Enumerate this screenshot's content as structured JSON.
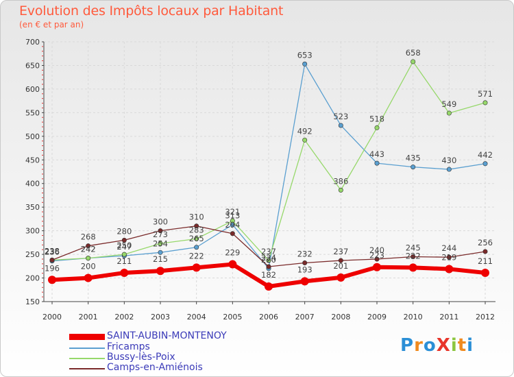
{
  "title": "Evolution des Impôts locaux par Habitant",
  "subtitle": "(en € et par an)",
  "logo": {
    "text": "ProXiti",
    "colors": [
      "#2b8fd6",
      "#f08a1e",
      "#2b8fd6",
      "#e8352a",
      "#8cc63f",
      "#f08a1e",
      "#2b8fd6"
    ]
  },
  "chart_data": {
    "type": "line",
    "title": "Evolution des Impôts locaux par Habitant",
    "subtitle": "(en € et par an)",
    "xlabel": "",
    "ylabel": "",
    "ylim": [
      150,
      700
    ],
    "yticks": [
      150,
      200,
      250,
      300,
      350,
      400,
      450,
      500,
      550,
      600,
      650,
      700
    ],
    "grid": true,
    "legend_position": "bottom-left",
    "categories": [
      "2000",
      "2001",
      "2002",
      "2003",
      "2004",
      "2005",
      "2006",
      "2007",
      "2008",
      "2009",
      "2010",
      "2011",
      "2012"
    ],
    "series": [
      {
        "name": "SAINT-AUBIN-MONTENOY",
        "color": "#ee0000",
        "values": [
          196,
          200,
          211,
          215,
          222,
          229,
          182,
          193,
          201,
          223,
          222,
          219,
          211
        ]
      },
      {
        "name": "Fricamps",
        "color": "#5a9fd0",
        "values": [
          236,
          242,
          247,
          254,
          265,
          313,
          220,
          653,
          523,
          443,
          435,
          430,
          442
        ]
      },
      {
        "name": "Bussy-lès-Poix",
        "color": "#96d86a",
        "values": [
          238,
          242,
          250,
          273,
          283,
          321,
          237,
          492,
          386,
          518,
          658,
          549,
          571
        ]
      },
      {
        "name": "Camps-en-Amiénois",
        "color": "#7a2a2a",
        "values": [
          238,
          268,
          280,
          300,
          310,
          294,
          224,
          232,
          237,
          240,
          245,
          244,
          256
        ]
      }
    ]
  }
}
